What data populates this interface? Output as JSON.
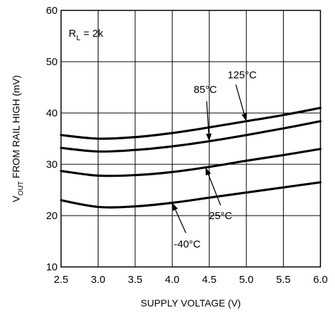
{
  "chart_data": {
    "type": "line",
    "title": "",
    "xlabel": "SUPPLY VOLTAGE (V)",
    "ylabel_parts": {
      "main": "V",
      "sub": "OUT",
      "rest": " FROM RAIL HIGH (mV)"
    },
    "xlim": [
      2.5,
      6.0
    ],
    "ylim": [
      10,
      60
    ],
    "x_ticks": [
      2.5,
      3.0,
      3.5,
      4.0,
      4.5,
      5.0,
      5.5,
      6.0
    ],
    "x_tick_labels": [
      "2.5",
      "3.0",
      "3.5",
      "4.0",
      "4.5",
      "5.0",
      "5.5",
      "6.0"
    ],
    "y_ticks": [
      10,
      20,
      30,
      40,
      50,
      60
    ],
    "y_tick_labels": [
      "10",
      "20",
      "30",
      "40",
      "50",
      "60"
    ],
    "grid": true,
    "inset_note": {
      "main": "R",
      "sub": "L",
      "rest": " = 2k"
    },
    "x": [
      2.5,
      3.0,
      3.5,
      4.0,
      4.5,
      5.0,
      5.5,
      6.0
    ],
    "series": [
      {
        "name": "125°C",
        "values": [
          35.7,
          35.0,
          35.3,
          36.1,
          37.2,
          38.4,
          39.6,
          41.0
        ]
      },
      {
        "name": "85°C",
        "values": [
          33.2,
          32.5,
          32.8,
          33.5,
          34.5,
          35.7,
          37.0,
          38.4
        ]
      },
      {
        "name": "25°C",
        "values": [
          28.7,
          27.8,
          27.9,
          28.5,
          29.5,
          30.7,
          31.8,
          33.0
        ]
      },
      {
        "name": "-40°C",
        "values": [
          23.0,
          21.7,
          21.8,
          22.5,
          23.5,
          24.5,
          25.5,
          26.5
        ]
      }
    ],
    "annotations": [
      {
        "text": "125°C",
        "target_series": "125°C",
        "target_x": 5.0
      },
      {
        "text": "85°C",
        "target_series": "85°C",
        "target_x": 4.5
      },
      {
        "text": "25°C",
        "target_series": "25°C",
        "target_x": 4.45
      },
      {
        "text": "-40°C",
        "target_series": "-40°C",
        "target_x": 4.0
      }
    ]
  }
}
